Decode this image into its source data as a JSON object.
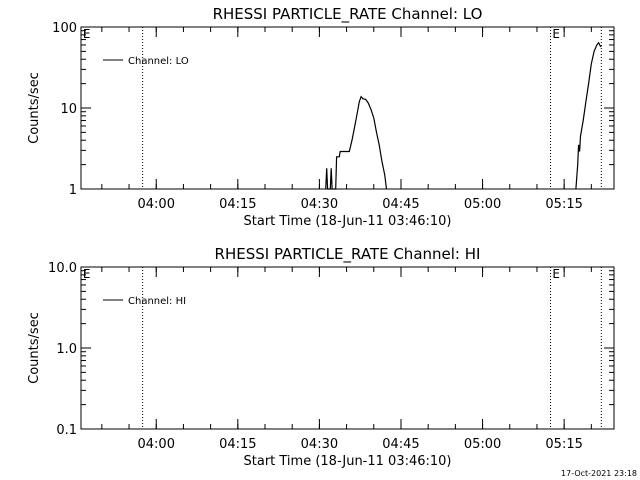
{
  "chart_data": [
    {
      "type": "line",
      "title": "RHESSI PARTICLE_RATE Channel: LO",
      "xlabel": "Start Time (18-Jun-11 03:46:10)",
      "ylabel": "Counts/sec",
      "y_scale": "log",
      "ylim": [
        1,
        100
      ],
      "y_ticks": [
        "1",
        "10",
        "100"
      ],
      "xlim": [
        "03:46:10",
        "05:24:10"
      ],
      "x_ticks": [
        "04:00",
        "04:15",
        "04:30",
        "04:45",
        "05:00",
        "05:15"
      ],
      "grid": false,
      "legend_position": "top-left",
      "event_lines": [
        "03:57:30",
        "05:12:30",
        "05:21:50"
      ],
      "event_markers": [
        {
          "label": "E",
          "x": "03:46:30"
        },
        {
          "label": "E",
          "x": "05:12:50"
        }
      ],
      "series": [
        {
          "name": "Channel: LO",
          "color": "#000000",
          "segments": [
            [
              [
                "04:31:10",
                1.0
              ],
              [
                "04:31:20",
                1.8
              ],
              [
                "04:31:30",
                1.0
              ],
              [
                "04:32:00",
                1.0
              ],
              [
                "04:32:10",
                1.8
              ],
              [
                "04:32:20",
                1.0
              ],
              [
                "04:33:00",
                1.0
              ],
              [
                "04:33:10",
                2.5
              ],
              [
                "04:33:40",
                2.5
              ],
              [
                "04:33:50",
                2.9
              ],
              [
                "04:35:30",
                2.9
              ],
              [
                "04:36:00",
                4.0
              ],
              [
                "04:36:30",
                6.0
              ],
              [
                "04:37:00",
                9.0
              ],
              [
                "04:37:20",
                12.0
              ],
              [
                "04:37:40",
                13.8
              ],
              [
                "04:38:00",
                13.0
              ],
              [
                "04:38:30",
                12.8
              ],
              [
                "04:39:00",
                11.5
              ],
              [
                "04:39:30",
                9.5
              ],
              [
                "04:40:00",
                7.5
              ],
              [
                "04:40:30",
                5.0
              ],
              [
                "04:41:00",
                3.5
              ],
              [
                "04:41:30",
                2.2
              ],
              [
                "04:42:00",
                1.5
              ],
              [
                "04:42:20",
                1.0
              ]
            ],
            [
              [
                "05:17:10",
                1.0
              ],
              [
                "05:17:30",
                2.0
              ],
              [
                "05:17:40",
                3.5
              ],
              [
                "05:17:50",
                2.9
              ],
              [
                "05:18:00",
                4.5
              ],
              [
                "05:18:30",
                7.0
              ],
              [
                "05:19:00",
                12.0
              ],
              [
                "05:19:30",
                20.0
              ],
              [
                "05:20:00",
                35.0
              ],
              [
                "05:20:30",
                50.0
              ],
              [
                "05:21:00",
                60.0
              ],
              [
                "05:21:20",
                64.0
              ],
              [
                "05:21:40",
                58.0
              ],
              [
                "05:21:50",
                57.0
              ]
            ]
          ]
        }
      ]
    },
    {
      "type": "line",
      "title": "RHESSI PARTICLE_RATE Channel: HI",
      "xlabel": "Start Time (18-Jun-11 03:46:10)",
      "ylabel": "Counts/sec",
      "y_scale": "log",
      "ylim": [
        0.1,
        10
      ],
      "y_ticks": [
        "0.1",
        "1.0",
        "10.0"
      ],
      "xlim": [
        "03:46:10",
        "05:24:10"
      ],
      "x_ticks": [
        "04:00",
        "04:15",
        "04:30",
        "04:45",
        "05:00",
        "05:15"
      ],
      "grid": false,
      "legend_position": "top-left",
      "event_lines": [
        "03:57:30",
        "05:12:30",
        "05:21:50"
      ],
      "event_markers": [
        {
          "label": "E",
          "x": "03:46:30"
        },
        {
          "label": "E",
          "x": "05:12:50"
        }
      ],
      "series": [
        {
          "name": "Channel: HI",
          "color": "#000000",
          "segments": []
        }
      ]
    }
  ],
  "footer": {
    "timestamp": "17-Oct-2021 23:18"
  }
}
